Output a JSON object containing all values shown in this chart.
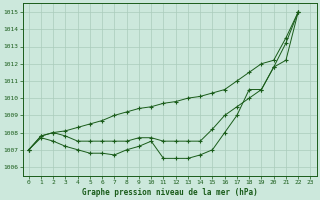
{
  "title": "Graphe pression niveau de la mer (hPa)",
  "bg_color": "#cce8dc",
  "line_color": "#1a5c1a",
  "grid_color": "#aaccbb",
  "x_ticks": [
    0,
    1,
    2,
    3,
    4,
    5,
    6,
    7,
    8,
    9,
    10,
    11,
    12,
    13,
    14,
    15,
    16,
    17,
    18,
    19,
    20,
    21,
    22,
    23
  ],
  "ylim": [
    1005.5,
    1015.5
  ],
  "y_ticks": [
    1006,
    1007,
    1008,
    1009,
    1010,
    1011,
    1012,
    1013,
    1014,
    1015
  ],
  "line1_x": [
    0,
    1,
    2,
    3,
    4,
    5,
    6,
    7,
    8,
    9,
    10,
    11,
    12,
    13,
    14,
    15,
    16,
    17,
    18,
    19,
    20,
    21,
    22
  ],
  "line1_y": [
    1007.0,
    1007.8,
    1008.0,
    1008.1,
    1008.3,
    1008.5,
    1008.7,
    1009.0,
    1009.2,
    1009.4,
    1009.5,
    1009.7,
    1009.8,
    1010.0,
    1010.1,
    1010.3,
    1010.5,
    1011.0,
    1011.5,
    1012.0,
    1012.2,
    1013.5,
    1015.0
  ],
  "line2_x": [
    0,
    1,
    2,
    3,
    4,
    5,
    6,
    7,
    8,
    9,
    10,
    11,
    12,
    13,
    14,
    15,
    16,
    17,
    18,
    19,
    20,
    21,
    22
  ],
  "line2_y": [
    1007.0,
    1007.8,
    1008.0,
    1007.8,
    1007.5,
    1007.5,
    1007.5,
    1007.5,
    1007.5,
    1007.7,
    1007.7,
    1007.5,
    1007.5,
    1007.5,
    1007.5,
    1008.2,
    1009.0,
    1009.5,
    1010.0,
    1010.5,
    1011.8,
    1012.2,
    1015.0
  ],
  "line3_x": [
    0,
    1,
    2,
    3,
    4,
    5,
    6,
    7,
    8,
    9,
    10,
    11,
    12,
    13,
    14,
    15,
    16,
    17,
    18,
    19,
    20,
    21,
    22
  ],
  "line3_y": [
    1007.0,
    1007.7,
    1007.5,
    1007.2,
    1007.0,
    1006.8,
    1006.8,
    1006.7,
    1007.0,
    1007.2,
    1007.5,
    1006.5,
    1006.5,
    1006.5,
    1006.7,
    1007.0,
    1008.0,
    1009.0,
    1010.5,
    1010.5,
    1011.8,
    1013.2,
    1015.0
  ],
  "figsize": [
    3.2,
    2.0
  ],
  "dpi": 100
}
